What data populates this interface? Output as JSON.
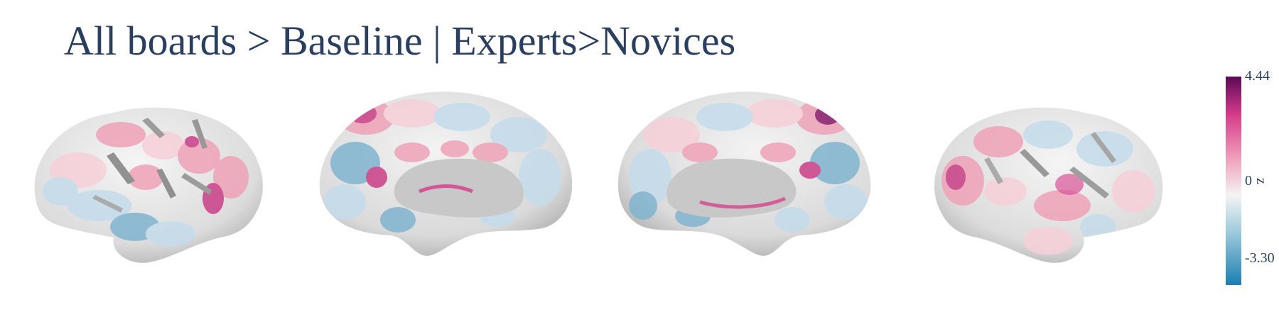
{
  "figure": {
    "title": "All boards > Baseline | Experts>Novices"
  },
  "colorbar": {
    "title": "z",
    "max_label": "4.44",
    "mid_label": "0",
    "min_label": "-3.30",
    "range": [
      -3.3,
      4.44
    ],
    "colors": {
      "low": "#1a7fb0",
      "low_mid": "#9cc9dd",
      "neutral": "#f4f4f4",
      "high_mid": "#f0a3bd",
      "high": "#d63a8a",
      "max": "#5a0a55"
    }
  },
  "views": [
    {
      "name": "left-lateral"
    },
    {
      "name": "left-medial"
    },
    {
      "name": "right-medial"
    },
    {
      "name": "right-lateral"
    }
  ],
  "surface_colors": {
    "base": "#e4e4e4",
    "shade": "#b9b9b9",
    "dark": "#808080",
    "blue": "#7fb3cf",
    "pale_blue": "#c4dcea",
    "pink": "#efa2b8",
    "pale_pink": "#f6cfd8",
    "magenta": "#c93e86",
    "purple": "#8a1a6a"
  }
}
